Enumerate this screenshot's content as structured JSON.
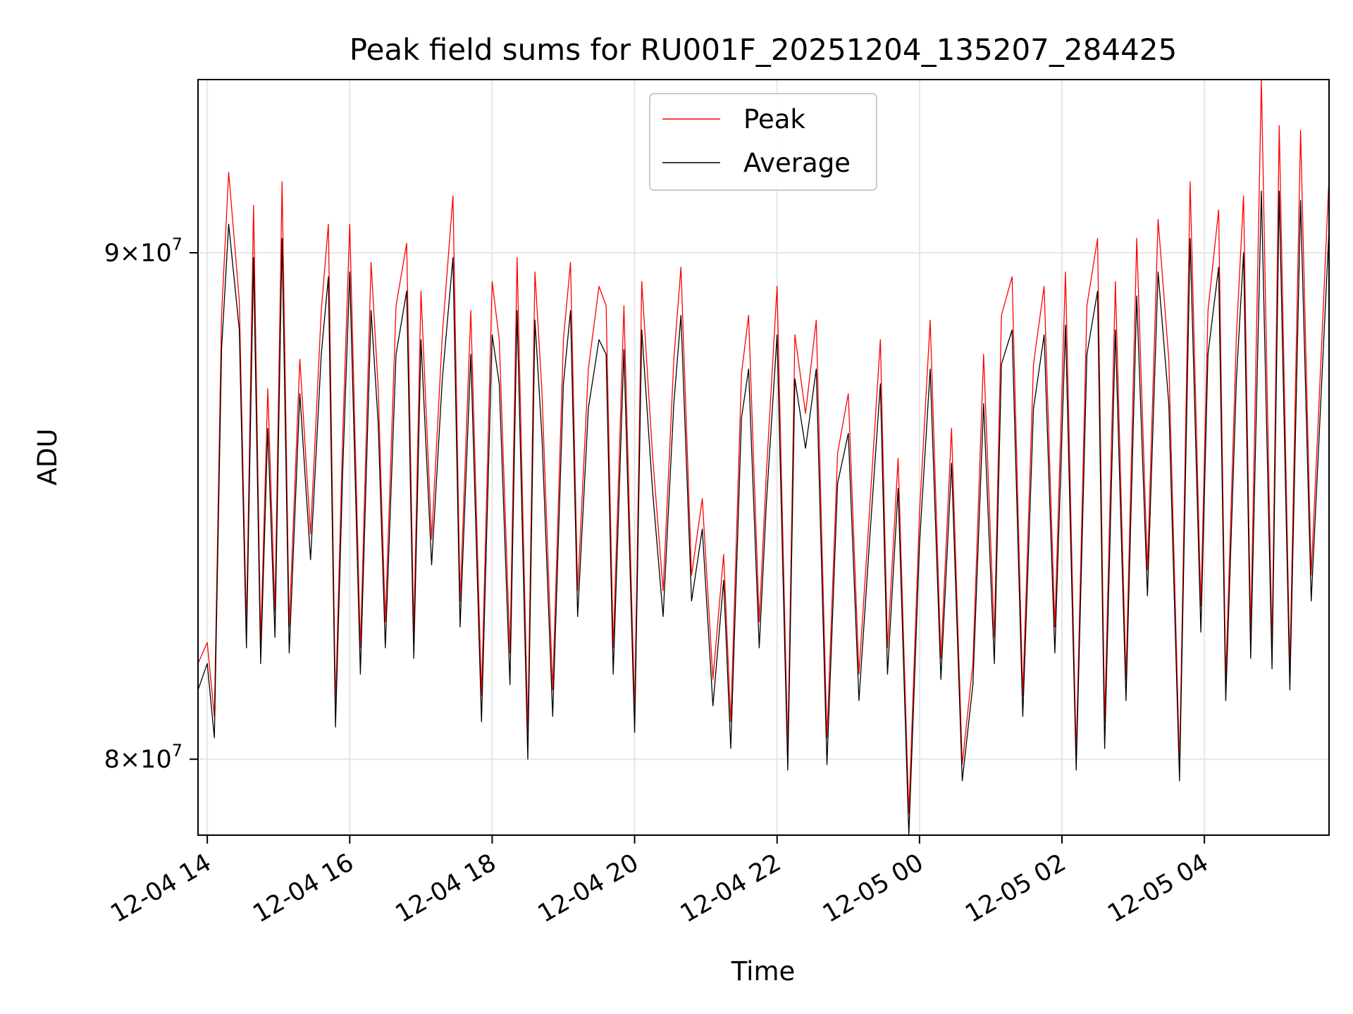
{
  "chart_data": {
    "type": "line",
    "title": "Peak field sums for RU001F_20251204_135207_284425",
    "xlabel": "Time",
    "ylabel": "ADU",
    "yscale": "log",
    "ylim": [
      78600000,
      93700000
    ],
    "xlim_hours": [
      13.87,
      29.75
    ],
    "grid": true,
    "legend_position": "top-center",
    "x_ticks": [
      {
        "hour": 14,
        "label": "12-04 14"
      },
      {
        "hour": 16,
        "label": "12-04 16"
      },
      {
        "hour": 18,
        "label": "12-04 18"
      },
      {
        "hour": 20,
        "label": "12-04 20"
      },
      {
        "hour": 22,
        "label": "12-04 22"
      },
      {
        "hour": 24,
        "label": "12-05 00"
      },
      {
        "hour": 26,
        "label": "12-05 02"
      },
      {
        "hour": 28,
        "label": "12-05 04"
      }
    ],
    "y_ticks": [
      {
        "value": 80000000,
        "mantissa": "8",
        "exponent": "7"
      },
      {
        "value": 90000000,
        "mantissa": "9",
        "exponent": "7"
      }
    ],
    "y_tick_times": "×",
    "y_tick_base": "10",
    "series": [
      {
        "name": "Peak",
        "color": "#ff0000",
        "hours": [
          13.87,
          14.0,
          14.1,
          14.2,
          14.3,
          14.45,
          14.55,
          14.65,
          14.75,
          14.85,
          14.95,
          15.05,
          15.15,
          15.3,
          15.45,
          15.6,
          15.7,
          15.8,
          15.9,
          16.0,
          16.15,
          16.3,
          16.4,
          16.5,
          16.65,
          16.8,
          16.9,
          17.0,
          17.15,
          17.3,
          17.45,
          17.55,
          17.7,
          17.85,
          18.0,
          18.1,
          18.25,
          18.35,
          18.5,
          18.6,
          18.7,
          18.85,
          19.0,
          19.1,
          19.2,
          19.35,
          19.5,
          19.6,
          19.7,
          19.85,
          20.0,
          20.1,
          20.25,
          20.4,
          20.55,
          20.65,
          20.8,
          20.95,
          21.1,
          21.25,
          21.35,
          21.5,
          21.6,
          21.75,
          21.85,
          22.0,
          22.15,
          22.25,
          22.4,
          22.55,
          22.7,
          22.85,
          23.0,
          23.15,
          23.3,
          23.45,
          23.55,
          23.7,
          23.85,
          24.0,
          24.15,
          24.3,
          24.45,
          24.6,
          24.75,
          24.9,
          25.05,
          25.15,
          25.3,
          25.45,
          25.6,
          25.75,
          25.9,
          26.05,
          26.2,
          26.35,
          26.5,
          26.6,
          26.75,
          26.9,
          27.05,
          27.2,
          27.35,
          27.5,
          27.65,
          27.8,
          27.95,
          28.05,
          28.2,
          28.3,
          28.45,
          28.55,
          28.65,
          28.8,
          28.95,
          29.05,
          29.2,
          29.35,
          29.5,
          29.6,
          29.75
        ],
        "values": [
          81800000,
          82200000,
          80800000,
          88700000,
          91700000,
          89000000,
          82500000,
          91000000,
          82200000,
          87200000,
          82800000,
          91500000,
          82500000,
          87800000,
          84300000,
          88800000,
          90600000,
          81000000,
          86200000,
          90600000,
          82100000,
          89800000,
          87200000,
          82600000,
          88900000,
          90200000,
          82400000,
          89200000,
          84200000,
          88300000,
          91200000,
          83000000,
          88800000,
          81200000,
          89400000,
          88200000,
          82000000,
          89900000,
          80500000,
          89600000,
          87100000,
          81300000,
          88200000,
          89800000,
          83200000,
          87600000,
          89300000,
          88900000,
          82100000,
          88900000,
          80900000,
          89400000,
          85900000,
          83200000,
          87800000,
          89700000,
          83500000,
          85000000,
          81500000,
          83900000,
          80700000,
          87500000,
          88700000,
          82600000,
          85500000,
          89300000,
          80200000,
          88300000,
          86700000,
          88600000,
          80400000,
          85900000,
          87100000,
          81600000,
          84800000,
          88200000,
          82100000,
          85800000,
          79000000,
          84700000,
          88600000,
          81900000,
          86400000,
          79900000,
          81800000,
          87900000,
          82300000,
          88700000,
          89500000,
          81200000,
          87700000,
          89300000,
          82500000,
          89600000,
          80100000,
          88900000,
          90300000,
          80700000,
          89400000,
          81500000,
          90300000,
          83600000,
          90700000,
          87800000,
          79900000,
          91500000,
          82900000,
          88800000,
          90900000,
          81500000,
          88300000,
          91200000,
          82400000,
          93700000,
          82100000,
          92700000,
          81700000,
          92600000,
          83500000,
          86600000,
          91600000
        ],
        "stroke_width": 1.3
      },
      {
        "name": "Average",
        "color": "#000000",
        "hours": [
          13.87,
          14.0,
          14.1,
          14.2,
          14.3,
          14.45,
          14.55,
          14.65,
          14.75,
          14.85,
          14.95,
          15.05,
          15.15,
          15.3,
          15.45,
          15.6,
          15.7,
          15.8,
          15.9,
          16.0,
          16.15,
          16.3,
          16.4,
          16.5,
          16.65,
          16.8,
          16.9,
          17.0,
          17.15,
          17.3,
          17.45,
          17.55,
          17.7,
          17.85,
          18.0,
          18.1,
          18.25,
          18.35,
          18.5,
          18.6,
          18.7,
          18.85,
          19.0,
          19.1,
          19.2,
          19.35,
          19.5,
          19.6,
          19.7,
          19.85,
          20.0,
          20.1,
          20.25,
          20.4,
          20.55,
          20.65,
          20.8,
          20.95,
          21.1,
          21.25,
          21.35,
          21.5,
          21.6,
          21.75,
          21.85,
          22.0,
          22.15,
          22.25,
          22.4,
          22.55,
          22.7,
          22.85,
          23.0,
          23.15,
          23.3,
          23.45,
          23.55,
          23.7,
          23.85,
          24.0,
          24.15,
          24.3,
          24.45,
          24.6,
          24.75,
          24.9,
          25.05,
          25.15,
          25.3,
          25.45,
          25.6,
          25.75,
          25.9,
          26.05,
          26.2,
          26.35,
          26.5,
          26.6,
          26.75,
          26.9,
          27.05,
          27.2,
          27.35,
          27.5,
          27.65,
          27.8,
          27.95,
          28.05,
          28.2,
          28.3,
          28.45,
          28.55,
          28.65,
          28.8,
          28.95,
          29.05,
          29.2,
          29.35,
          29.5,
          29.6,
          29.75
        ],
        "values": [
          81300000,
          81800000,
          80400000,
          88000000,
          90600000,
          88400000,
          82100000,
          89900000,
          81800000,
          86400000,
          82300000,
          90300000,
          82000000,
          87100000,
          83800000,
          87900000,
          89500000,
          80600000,
          85500000,
          89600000,
          81600000,
          88800000,
          86500000,
          82100000,
          87900000,
          89200000,
          81900000,
          88200000,
          83700000,
          87400000,
          89900000,
          82500000,
          87900000,
          80700000,
          88300000,
          87300000,
          81400000,
          88800000,
          80000000,
          88600000,
          86200000,
          80800000,
          87300000,
          88800000,
          82700000,
          86800000,
          88200000,
          87900000,
          81600000,
          88000000,
          80500000,
          88400000,
          85200000,
          82700000,
          86900000,
          88700000,
          83000000,
          84400000,
          81000000,
          83400000,
          80200000,
          86600000,
          87600000,
          82100000,
          84900000,
          88300000,
          79800000,
          87400000,
          86000000,
          87600000,
          79900000,
          85300000,
          86300000,
          81100000,
          84200000,
          87300000,
          81600000,
          85200000,
          78600000,
          84100000,
          87600000,
          81500000,
          85700000,
          79600000,
          81400000,
          86900000,
          81800000,
          87700000,
          88400000,
          80800000,
          86800000,
          88300000,
          82000000,
          88500000,
          79800000,
          87900000,
          89200000,
          80200000,
          88400000,
          81100000,
          89100000,
          83100000,
          89600000,
          86900000,
          79600000,
          90300000,
          82400000,
          87900000,
          89700000,
          81100000,
          87400000,
          90000000,
          81900000,
          91300000,
          81700000,
          91300000,
          81300000,
          91100000,
          83000000,
          85900000,
          90500000
        ],
        "stroke_width": 1.3
      }
    ]
  }
}
